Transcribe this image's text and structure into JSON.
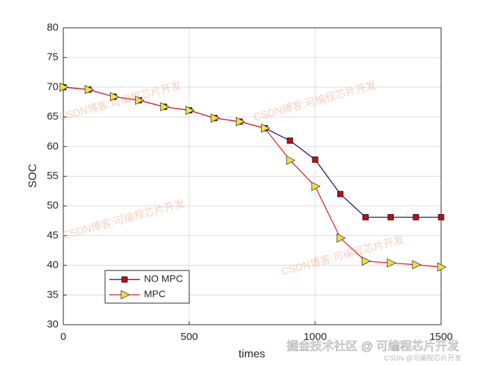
{
  "chart_data": {
    "type": "line",
    "xlabel": "times",
    "ylabel": "SOC",
    "x": [
      0,
      100,
      200,
      300,
      400,
      500,
      600,
      700,
      800,
      900,
      1000,
      1100,
      1200,
      1300,
      1400,
      1500
    ],
    "series": [
      {
        "name": "NO MPC",
        "color": "#000080",
        "marker": "square",
        "marker_color": "#b01515",
        "values": [
          70,
          69.6,
          68.4,
          67.8,
          66.7,
          66.1,
          64.8,
          64.2,
          63.1,
          61.0,
          57.8,
          52.0,
          48.1,
          48.1,
          48.1,
          48.1
        ]
      },
      {
        "name": "MPC",
        "color": "#e01010",
        "marker": "triangle-right",
        "marker_color": "#f0e040",
        "values": [
          70,
          69.6,
          68.4,
          67.8,
          66.7,
          66.1,
          64.8,
          64.2,
          63.1,
          57.7,
          53.3,
          44.6,
          40.7,
          40.4,
          40.1,
          39.7
        ]
      }
    ],
    "xlim": [
      0,
      1500
    ],
    "xticks": [
      0,
      500,
      1000,
      1500
    ],
    "ylim": [
      30,
      80
    ],
    "yticks": [
      30,
      35,
      40,
      45,
      50,
      55,
      60,
      65,
      70,
      75,
      80
    ],
    "grid": true,
    "legend": "lower left",
    "watermarks": [
      "CSDN博客:可编程芯片开发",
      "CSDN博客:可编程芯片开发",
      "CSDN博客:可编程芯片开发",
      "CSDN博客:可编程芯片开发"
    ],
    "footer": [
      "掘金技术社区 @ 可编程芯片开发",
      "CSDN @可编程芯片开发"
    ]
  }
}
